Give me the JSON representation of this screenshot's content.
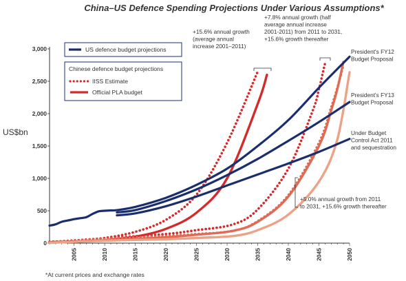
{
  "chart_data": {
    "type": "line",
    "title": "China–US Defence Spending Projections Under Various Assumptions*",
    "ylabel": "US$bn",
    "xlabel": "",
    "xlim": [
      2001,
      2050
    ],
    "ylim": [
      0,
      3000
    ],
    "x_ticks": [
      "2005",
      "2010",
      "2015",
      "2020",
      "2025",
      "2030",
      "2035",
      "2040",
      "2045",
      "2050"
    ],
    "y_ticks": [
      "0",
      "500",
      "1,000",
      "1,500",
      "2,000",
      "2,500",
      "3,000"
    ],
    "legend": {
      "us_entry": "US defence budget projections",
      "china_heading": "Chinese defence budget projections",
      "china_entries": [
        "IISS Estimate",
        "Official PLA budget"
      ]
    },
    "colors": {
      "us": "#1a2e6e",
      "china_dark": "#d42a2a",
      "china_mid": "#df6b55",
      "china_light": "#eba287"
    },
    "series": [
      {
        "group": "us",
        "points": [
          [
            2001,
            270
          ],
          [
            2002,
            290
          ],
          [
            2003,
            330
          ],
          [
            2004,
            350
          ],
          [
            2005,
            370
          ],
          [
            2006,
            385
          ],
          [
            2007,
            400
          ],
          [
            2008,
            450
          ],
          [
            2009,
            490
          ],
          [
            2010,
            500
          ],
          [
            2011,
            505
          ],
          [
            2012,
            510
          ],
          [
            2015,
            560
          ],
          [
            2020,
            700
          ],
          [
            2025,
            900
          ],
          [
            2030,
            1150
          ],
          [
            2035,
            1500
          ],
          [
            2040,
            1900
          ],
          [
            2045,
            2400
          ],
          [
            2050,
            2880
          ]
        ]
      },
      {
        "group": "us",
        "points": [
          [
            2012,
            475
          ],
          [
            2015,
            510
          ],
          [
            2020,
            650
          ],
          [
            2025,
            830
          ],
          [
            2030,
            1050
          ],
          [
            2035,
            1300
          ],
          [
            2040,
            1580
          ],
          [
            2045,
            1870
          ],
          [
            2050,
            2180
          ]
        ]
      },
      {
        "group": "us",
        "points": [
          [
            2012,
            430
          ],
          [
            2015,
            460
          ],
          [
            2020,
            570
          ],
          [
            2025,
            720
          ],
          [
            2030,
            890
          ],
          [
            2035,
            1060
          ],
          [
            2040,
            1230
          ],
          [
            2045,
            1410
          ],
          [
            2050,
            1610
          ]
        ]
      },
      {
        "group": "china",
        "style": "dotted",
        "color": "china_dark",
        "points": [
          [
            2001,
            20
          ],
          [
            2005,
            40
          ],
          [
            2010,
            80
          ],
          [
            2015,
            175
          ],
          [
            2020,
            360
          ],
          [
            2025,
            750
          ],
          [
            2030,
            1550
          ],
          [
            2035,
            2650
          ]
        ]
      },
      {
        "group": "china",
        "style": "solid",
        "color": "china_dark",
        "points": [
          [
            2001,
            15
          ],
          [
            2005,
            25
          ],
          [
            2010,
            45
          ],
          [
            2015,
            100
          ],
          [
            2020,
            220
          ],
          [
            2025,
            470
          ],
          [
            2030,
            1000
          ],
          [
            2035,
            2150
          ],
          [
            2036.5,
            2600
          ]
        ]
      },
      {
        "group": "china",
        "style": "dotted",
        "color": "china_dark",
        "points": [
          [
            2001,
            15
          ],
          [
            2011,
            80
          ],
          [
            2020,
            140
          ],
          [
            2025,
            200
          ],
          [
            2031,
            290
          ],
          [
            2035,
            520
          ],
          [
            2040,
            1150
          ],
          [
            2044,
            2050
          ],
          [
            2045,
            2380
          ],
          [
            2046,
            2780
          ]
        ]
      },
      {
        "group": "china",
        "style": "solid",
        "color": "china_mid",
        "points": [
          [
            2001,
            10
          ],
          [
            2011,
            45
          ],
          [
            2020,
            90
          ],
          [
            2025,
            130
          ],
          [
            2031,
            190
          ],
          [
            2035,
            330
          ],
          [
            2040,
            720
          ],
          [
            2045,
            1500
          ],
          [
            2047,
            2050
          ],
          [
            2048,
            2380
          ],
          [
            2049,
            2800
          ]
        ]
      },
      {
        "group": "china",
        "style": "dotted",
        "color": "china_mid",
        "points": [
          [
            2001,
            10
          ],
          [
            2011,
            70
          ],
          [
            2020,
            110
          ],
          [
            2025,
            140
          ],
          [
            2031,
            190
          ],
          [
            2035,
            340
          ],
          [
            2040,
            740
          ],
          [
            2045,
            1550
          ],
          [
            2047,
            2100
          ],
          [
            2048,
            2400
          ],
          [
            2049,
            2750
          ]
        ]
      },
      {
        "group": "china",
        "style": "solid",
        "color": "china_light",
        "points": [
          [
            2001,
            5
          ],
          [
            2011,
            40
          ],
          [
            2020,
            60
          ],
          [
            2025,
            80
          ],
          [
            2031,
            110
          ],
          [
            2035,
            200
          ],
          [
            2040,
            440
          ],
          [
            2045,
            950
          ],
          [
            2048,
            1600
          ],
          [
            2050,
            2640
          ]
        ]
      }
    ],
    "annotations": [
      {
        "lines": [
          "+15.6% annual growth",
          "(average annual",
          "increase 2001–2011)"
        ]
      },
      {
        "lines": [
          "+7.8% annual growth (half",
          "average annual increase",
          "2001-2011) from 2011 to 2031,",
          "+15.6% growth thereafter"
        ]
      },
      {
        "lines": [
          "President's FY12",
          "Budget Proposal"
        ]
      },
      {
        "lines": [
          "President's FY13",
          "Budget Proposal"
        ]
      },
      {
        "lines": [
          "Under Budget",
          "Control Act 2011",
          "and sequestration"
        ]
      },
      {
        "lines": [
          "+5.0% annual growth from 2011",
          "to 2031, +15.6% growth thereafter"
        ]
      }
    ],
    "footnote": "*At current prices and exchange rates",
    "grid": false
  }
}
